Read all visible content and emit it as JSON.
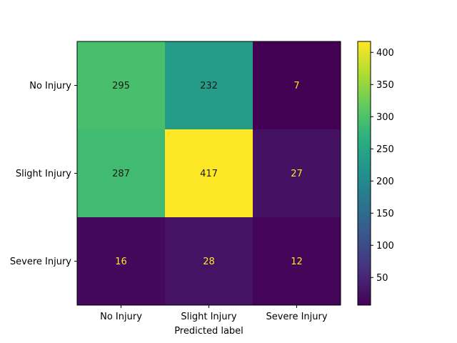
{
  "chart_data": {
    "type": "heatmap",
    "title": "",
    "xlabel": "Predicted label",
    "ylabel": "",
    "x_categories": [
      "No Injury",
      "Slight Injury",
      "Severe Injury"
    ],
    "y_categories": [
      "No Injury",
      "Slight Injury",
      "Severe Injury"
    ],
    "values": [
      [
        295,
        232,
        7
      ],
      [
        287,
        417,
        27
      ],
      [
        16,
        28,
        12
      ]
    ],
    "colormap": "viridis",
    "colorbar": {
      "range": [
        7,
        417
      ],
      "ticks": [
        50,
        100,
        150,
        200,
        250,
        300,
        350,
        400
      ]
    },
    "text_colors": {
      "on_dark": "#fde725",
      "on_light": "#1a1a1a"
    }
  }
}
